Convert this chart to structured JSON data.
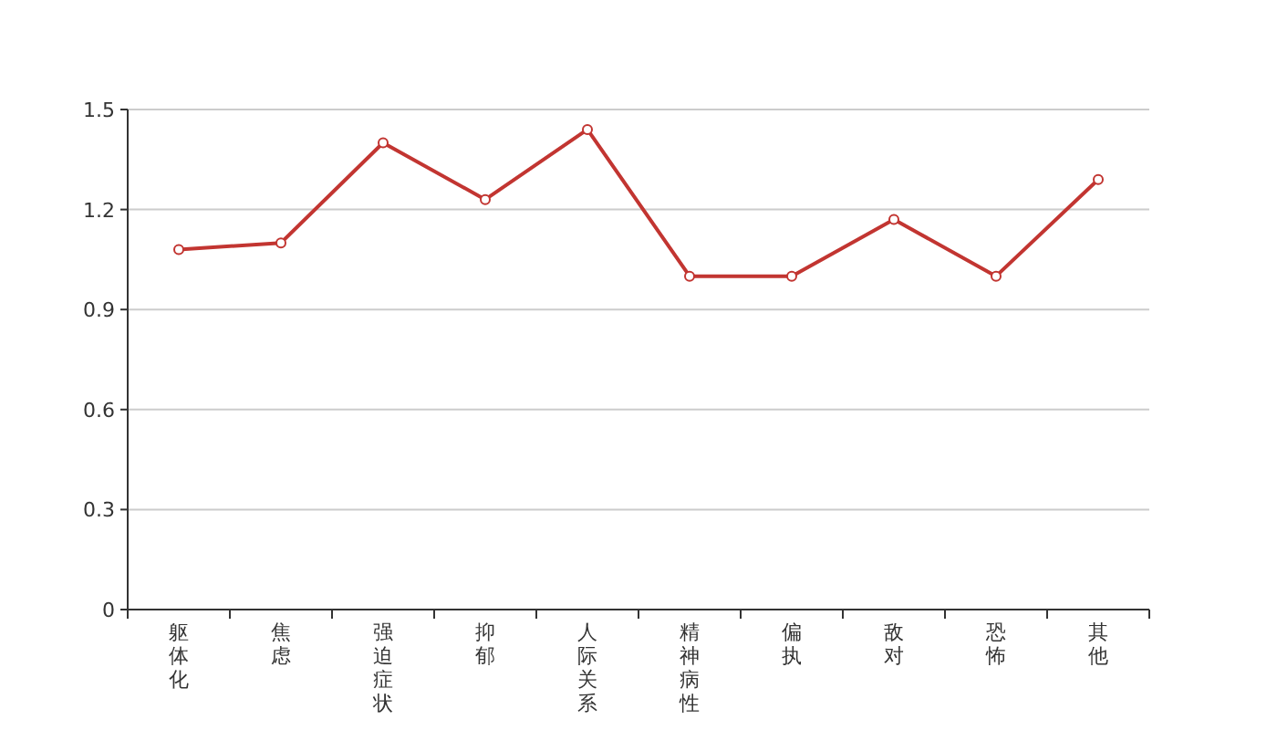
{
  "chart_data": {
    "type": "line",
    "categories": [
      "躯体化",
      "焦虑",
      "强迫症状",
      "抑郁",
      "人际关系",
      "精神病性",
      "偏执",
      "敌对",
      "恐怖",
      "其他"
    ],
    "series": [
      {
        "color": "#c23531",
        "values": [
          1.08,
          1.1,
          1.4,
          1.23,
          1.44,
          1.0,
          1.0,
          1.17,
          1.0,
          1.29
        ]
      }
    ],
    "ylim": [
      0,
      1.5
    ],
    "yticks": [
      0,
      0.3,
      0.6,
      0.9,
      1.2,
      1.5
    ],
    "grid": "y",
    "marker": "circle"
  }
}
